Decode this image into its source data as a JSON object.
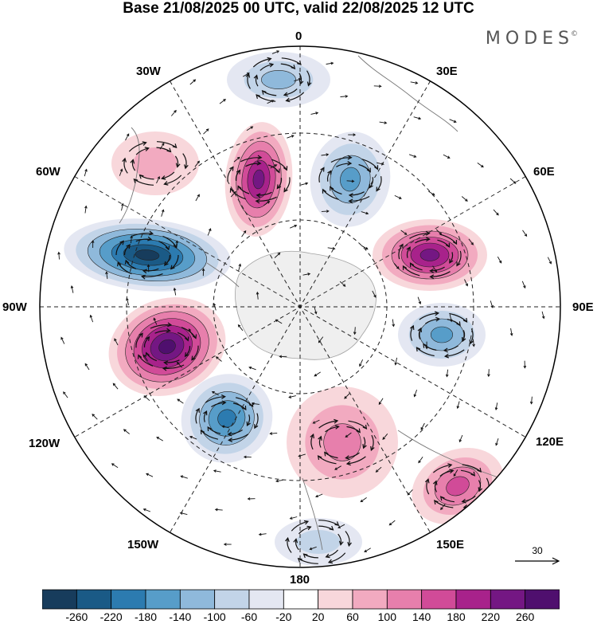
{
  "title": "Base 21/08/2025 00 UTC, valid 22/08/2025 12 UTC",
  "brand": "MODES",
  "brand_mark": "©",
  "longitude_labels": {
    "top": "0",
    "top_right": "30E",
    "right_upper": "60E",
    "right": "90E",
    "right_lower": "120E",
    "bottom_right": "150E",
    "bottom": "180",
    "bottom_left": "150W",
    "left_lower": "120W",
    "left": "90W",
    "left_upper": "60W",
    "top_left": "30W"
  },
  "vector_scale": {
    "value": "30"
  },
  "colorbar": {
    "ticks": [
      "-260",
      "-220",
      "-180",
      "-140",
      "-100",
      "-60",
      "-20",
      "20",
      "60",
      "100",
      "140",
      "180",
      "220",
      "260"
    ],
    "colors": [
      "#173c5c",
      "#1a5a86",
      "#2c7bb0",
      "#579dc9",
      "#8fb9db",
      "#c2d4e8",
      "#e4e7f2",
      "#ffffff",
      "#f8d7db",
      "#f2aac0",
      "#e77fac",
      "#d14b98",
      "#a8228b",
      "#741783",
      "#4f0f6e"
    ]
  },
  "anomaly_centers": [
    {
      "sign": "neg",
      "value": -260
    },
    {
      "sign": "pos",
      "value": 260
    },
    {
      "sign": "pos",
      "value": 220
    },
    {
      "sign": "neg",
      "value": -140
    },
    {
      "sign": "pos",
      "value": 240
    },
    {
      "sign": "neg",
      "value": -200
    },
    {
      "sign": "neg",
      "value": -140
    },
    {
      "sign": "pos",
      "value": 120
    },
    {
      "sign": "pos",
      "value": 140
    },
    {
      "sign": "neg",
      "value": -120
    },
    {
      "sign": "pos",
      "value": 60
    },
    {
      "sign": "neg",
      "value": -60
    }
  ]
}
